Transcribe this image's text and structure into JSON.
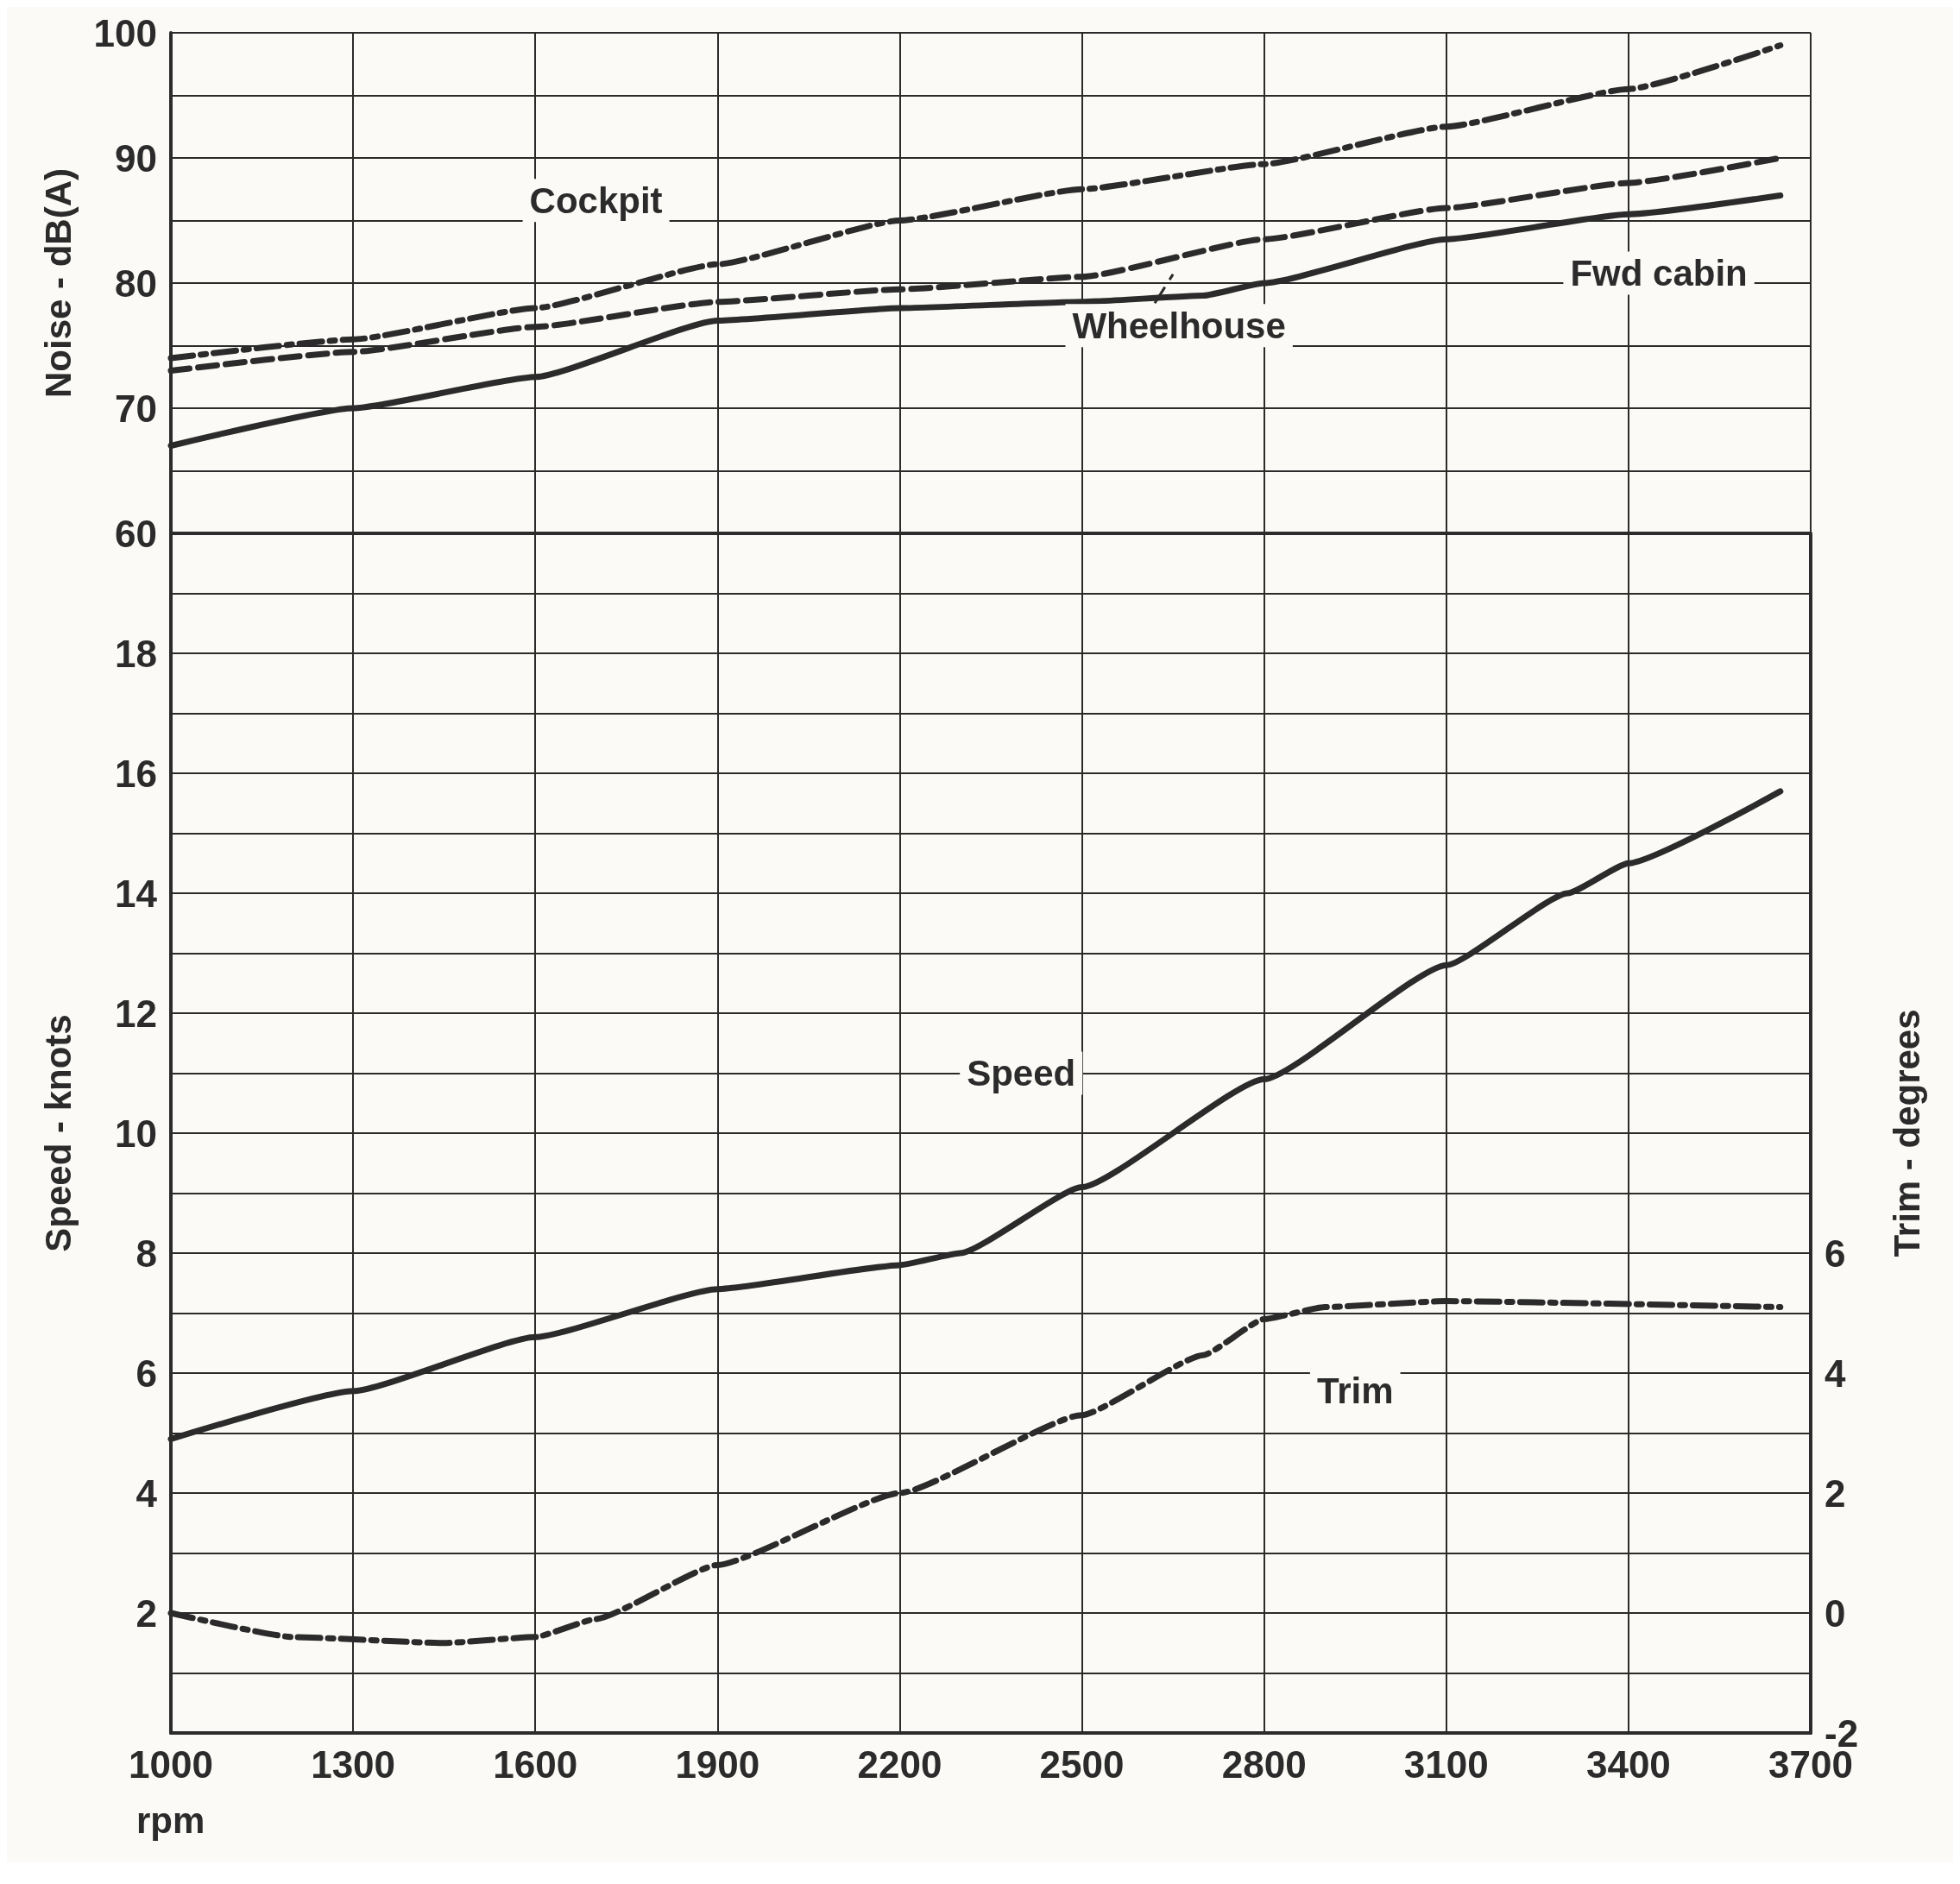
{
  "chart_data": [
    {
      "type": "line",
      "ylabel": "Noise - dB(A)",
      "xlim": [
        1000,
        3700
      ],
      "xticks": [
        1000,
        1300,
        1600,
        1900,
        2200,
        2500,
        2800,
        3100,
        3400,
        3700
      ],
      "ylim": [
        60,
        100
      ],
      "yticks": [
        60,
        {
          "value": 65,
          "label": null
        },
        70,
        {
          "value": 75,
          "label": null
        },
        80,
        {
          "value": 85,
          "label": null
        },
        90,
        {
          "value": 95,
          "label": null
        },
        100
      ],
      "grid": true,
      "tick_labels": "y",
      "marker": "none",
      "series": [
        {
          "name": "Cockpit",
          "color": "#2b2b2b",
          "line_style": "dashdot",
          "x": [
            1000,
            1300,
            1600,
            1900,
            2200,
            2500,
            2800,
            3100,
            3400,
            3650
          ],
          "values": [
            74,
            75.5,
            78,
            81.5,
            85,
            87.5,
            89.5,
            92.5,
            95.5,
            99
          ]
        },
        {
          "name": "Wheelhouse",
          "color": "#2b2b2b",
          "line_style": "dashed",
          "x": [
            1000,
            1300,
            1600,
            1900,
            2200,
            2500,
            2800,
            3100,
            3400,
            3650
          ],
          "values": [
            73,
            74.5,
            76.5,
            78.5,
            79.5,
            80.5,
            83.5,
            86,
            88,
            90
          ]
        },
        {
          "name": "Fwd cabin",
          "color": "#2b2b2b",
          "line_style": "solid",
          "x": [
            1000,
            1300,
            1600,
            1900,
            2200,
            2500,
            2700,
            2800,
            3100,
            3400,
            3650
          ],
          "values": [
            67,
            70,
            72.5,
            77,
            78,
            78.5,
            79,
            80,
            83.5,
            85.5,
            87
          ]
        }
      ]
    },
    {
      "type": "line",
      "xlabel": "rpm",
      "ylabel": "Speed - knots",
      "y2label": "Trim - degrees",
      "xlim": [
        1000,
        3700
      ],
      "xticks": [
        1000,
        1300,
        1600,
        1900,
        2200,
        2500,
        2800,
        3100,
        3400,
        3700
      ],
      "ylim": [
        0,
        20
      ],
      "yticks": [
        {
          "value": 0,
          "label": null
        },
        {
          "value": 1,
          "label": null
        },
        2,
        {
          "value": 3,
          "label": null
        },
        4,
        {
          "value": 5,
          "label": null
        },
        6,
        {
          "value": 7,
          "label": null
        },
        8,
        {
          "value": 9,
          "label": null
        },
        10,
        {
          "value": 11,
          "label": null
        },
        12,
        {
          "value": 13,
          "label": null
        },
        14,
        {
          "value": 15,
          "label": null
        },
        16,
        {
          "value": 17,
          "label": null
        },
        18,
        {
          "value": 19,
          "label": null
        },
        {
          "value": 20,
          "label": null
        }
      ],
      "y2lim": [
        -2,
        18
      ],
      "y2ticks": [
        -2,
        0,
        2,
        4,
        6
      ],
      "grid": true,
      "marker": "none",
      "series": [
        {
          "name": "Speed",
          "color": "#2b2b2b",
          "line_style": "solid",
          "x": [
            1000,
            1300,
            1600,
            1900,
            2200,
            2300,
            2500,
            2800,
            3100,
            3300,
            3400,
            3650
          ],
          "values": [
            4.9,
            5.7,
            6.6,
            7.4,
            7.8,
            8.0,
            9.1,
            10.9,
            12.8,
            14.0,
            14.5,
            15.7
          ]
        },
        {
          "name": "Trim",
          "color": "#2b2b2b",
          "line_style": "dashdot",
          "axis": "y2",
          "x": [
            1000,
            1200,
            1450,
            1600,
            1700,
            1900,
            2200,
            2500,
            2700,
            2800,
            2900,
            3100,
            3650
          ],
          "values": [
            0,
            -0.4,
            -0.5,
            -0.4,
            -0.1,
            0.8,
            2.0,
            3.3,
            4.3,
            4.9,
            5.1,
            5.2,
            5.1
          ]
        }
      ]
    }
  ]
}
